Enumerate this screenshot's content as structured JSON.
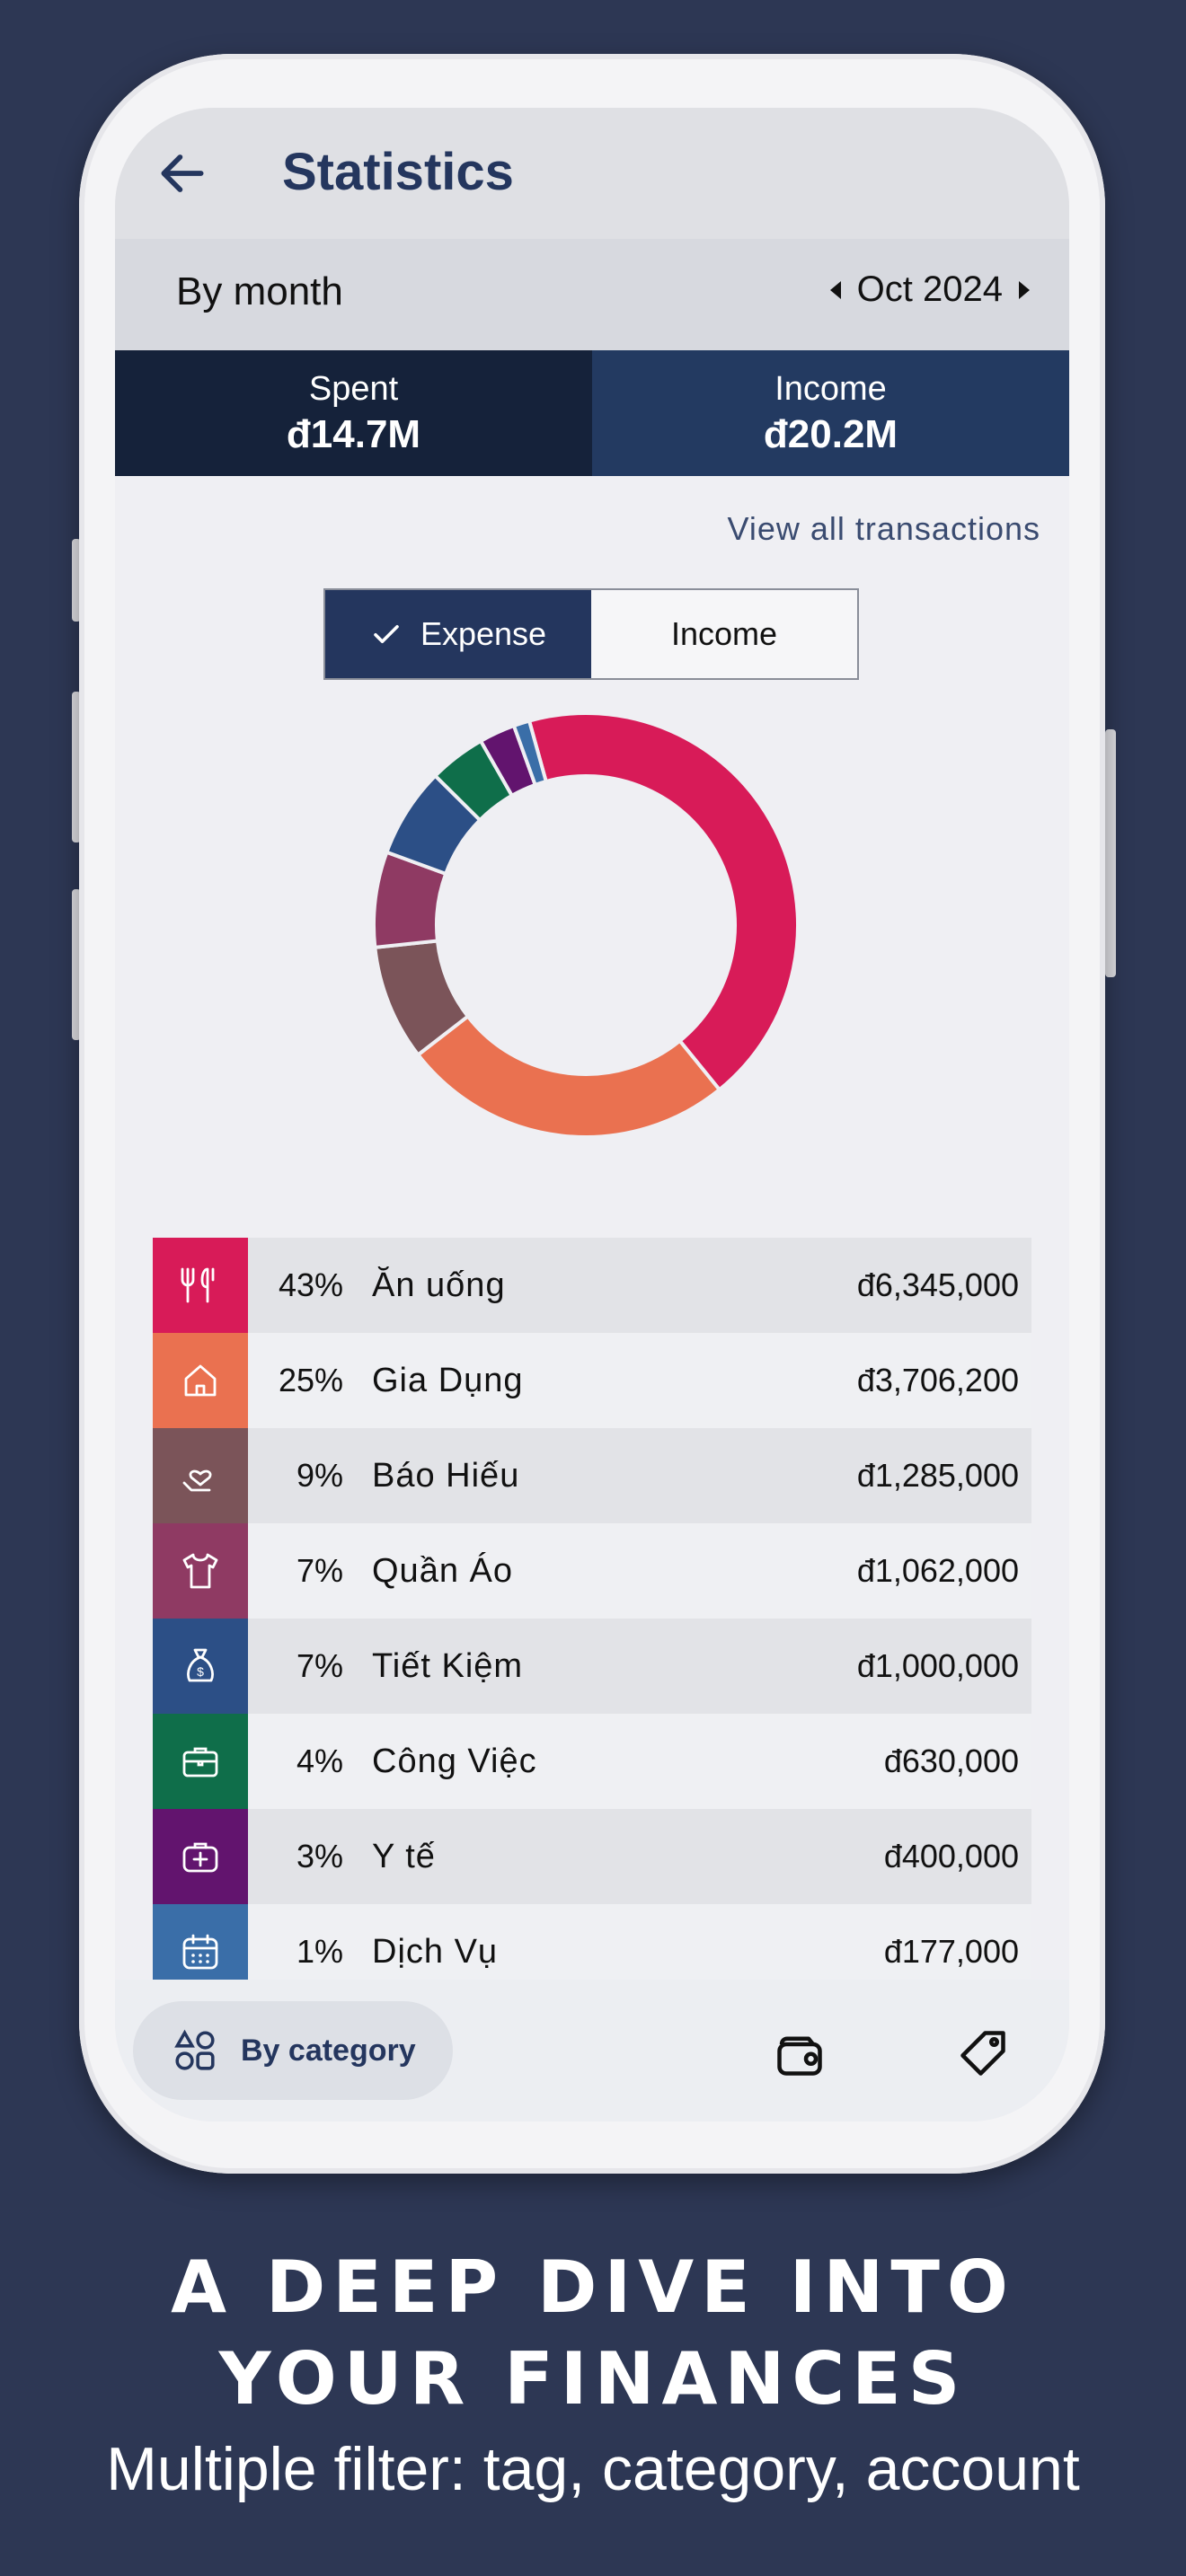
{
  "screen": {
    "title": "Statistics",
    "period_label": "By month",
    "period_value": "Oct 2024"
  },
  "summary": {
    "spent_label": "Spent",
    "spent_value": "đ14.7M",
    "income_label": "Income",
    "income_value": "đ20.2M"
  },
  "view_all": "View all transactions",
  "toggle": {
    "expense": "Expense",
    "income": "Income",
    "selected": "Expense"
  },
  "categories": [
    {
      "pct": "43%",
      "name": "Ăn uống",
      "amount": "đ6,345,000",
      "color": "#d81b58",
      "icon": "utensils-icon"
    },
    {
      "pct": "25%",
      "name": "Gia Dụng",
      "amount": "đ3,706,200",
      "color": "#ea7150",
      "icon": "home-icon"
    },
    {
      "pct": "9%",
      "name": "Báo Hiếu",
      "amount": "đ1,285,000",
      "color": "#7b5459",
      "icon": "heart-hand-icon"
    },
    {
      "pct": "7%",
      "name": "Quần Áo",
      "amount": "đ1,062,000",
      "color": "#8f3a63",
      "icon": "shirt-icon"
    },
    {
      "pct": "7%",
      "name": "Tiết Kiệm",
      "amount": "đ1,000,000",
      "color": "#2c4f86",
      "icon": "money-bag-icon"
    },
    {
      "pct": "4%",
      "name": "Công Việc",
      "amount": "đ630,000",
      "color": "#0f6e4a",
      "icon": "briefcase-icon"
    },
    {
      "pct": "3%",
      "name": "Y tế",
      "amount": "đ400,000",
      "color": "#62146e",
      "icon": "medical-kit-icon"
    },
    {
      "pct": "1%",
      "name": "Dịch Vụ",
      "amount": "đ177,000",
      "color": "#3a6ea8",
      "icon": "calendar-icon"
    }
  ],
  "chart_data": {
    "type": "pie",
    "categories": [
      "Ăn uống",
      "Gia Dụng",
      "Báo Hiếu",
      "Quần Áo",
      "Tiết Kiệm",
      "Công Việc",
      "Y tế",
      "Dịch Vụ"
    ],
    "values": [
      6345000,
      3706200,
      1285000,
      1062000,
      1000000,
      630000,
      400000,
      177000
    ],
    "colors": [
      "#d81b58",
      "#ea7150",
      "#7b5459",
      "#8f3a63",
      "#2c4f86",
      "#0f6e4a",
      "#62146e",
      "#3a6ea8"
    ],
    "style": "donut"
  },
  "bottom_nav": {
    "by_category": "By category"
  },
  "promo": {
    "headline_line1": "A DEEP DIVE INTO",
    "headline_line2": "YOUR FINANCES",
    "subline": "Multiple filter: tag, category, account"
  },
  "colors": {
    "background": "#2d3754",
    "primary": "#24365e",
    "spent_bg": "#15223a",
    "income_bg": "#233a61"
  }
}
